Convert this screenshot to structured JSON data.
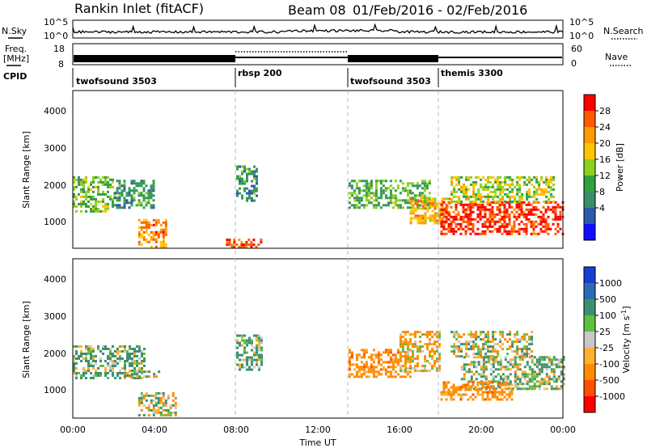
{
  "header": {
    "title": "Rankin Inlet (fitACF)",
    "beam": "Beam 08",
    "date_range": "01/Feb/2016 - 02/Feb/2016"
  },
  "noise_panel": {
    "left_label": "N.Sky",
    "right_label": "N.Search",
    "tick_top": "10^5",
    "tick_bottom": "10^0"
  },
  "freq_panel": {
    "left_label_1": "Freq.",
    "left_label_2": "[MHz]",
    "tick_top": "18",
    "tick_bottom": "8",
    "right_label": "Nave",
    "right_tick_top": "60",
    "right_tick_bottom": "0"
  },
  "cpid_panel": {
    "label": "CPID",
    "modes": [
      {
        "name": "twofsound 3503",
        "start_hr": 0.0
      },
      {
        "name": "rbsp 200",
        "start_hr": 8.0
      },
      {
        "name": "twofsound 3503",
        "start_hr": 13.5
      },
      {
        "name": "themis 3300",
        "start_hr": 18.0
      }
    ]
  },
  "axes": {
    "xlabel": "Time UT",
    "x_ticks": [
      "00:00",
      "04:00",
      "08:00",
      "12:00",
      "16:00",
      "20:00",
      "00:00"
    ],
    "ylabel": "Slant Range [km]",
    "y_ticks": [
      "1000",
      "2000",
      "3000",
      "4000"
    ]
  },
  "colorbars": {
    "power": {
      "label": "Power [dB]",
      "ticks": [
        "28",
        "24",
        "20",
        "16",
        "12",
        "8",
        "4"
      ],
      "colors": [
        "#ff0000",
        "#ff5a00",
        "#ff9a00",
        "#ffc400",
        "#8cd020",
        "#30a040",
        "#3a8e6a",
        "#2a5aa8",
        "#1010ff"
      ]
    },
    "velocity": {
      "label": "Velocity [m s^-1]",
      "ticks": [
        "1000",
        "500",
        "100",
        "25",
        "-25",
        "-100",
        "-500",
        "-1000"
      ],
      "colors": [
        "#1a3ed0",
        "#2d6bb0",
        "#3c9070",
        "#5cc040",
        "#c8c8c8",
        "#ffb030",
        "#ff8c00",
        "#ff5000",
        "#ff0000"
      ]
    }
  },
  "chart_data": [
    {
      "type": "heatmap",
      "title": "Power",
      "xlabel": "Time UT",
      "ylabel": "Slant Range [km]",
      "xlim": [
        0,
        24
      ],
      "ylim": [
        180,
        4600
      ],
      "colorbar_label": "Power [dB]",
      "clim": [
        0,
        32
      ],
      "regions": [
        {
          "x0": 0.0,
          "x1": 2.0,
          "y0": 1200,
          "y1": 2200,
          "value": 14
        },
        {
          "x0": 2.0,
          "x1": 4.0,
          "y0": 1300,
          "y1": 2100,
          "value": 10
        },
        {
          "x0": 3.2,
          "x1": 4.6,
          "y0": 250,
          "y1": 1000,
          "value": 24
        },
        {
          "x0": 7.5,
          "x1": 9.2,
          "y0": 200,
          "y1": 450,
          "value": 27
        },
        {
          "x0": 8.0,
          "x1": 9.0,
          "y0": 1500,
          "y1": 2500,
          "value": 10
        },
        {
          "x0": 13.5,
          "x1": 17.5,
          "y0": 1300,
          "y1": 2100,
          "value": 13
        },
        {
          "x0": 16.5,
          "x1": 18.5,
          "y0": 900,
          "y1": 1600,
          "value": 22
        },
        {
          "x0": 18.0,
          "x1": 24.0,
          "y0": 600,
          "y1": 1500,
          "value": 29
        },
        {
          "x0": 18.5,
          "x1": 23.5,
          "y0": 1500,
          "y1": 2200,
          "value": 17
        }
      ]
    },
    {
      "type": "heatmap",
      "title": "Velocity",
      "xlabel": "Time UT",
      "ylabel": "Slant Range [km]",
      "xlim": [
        0,
        24
      ],
      "ylim": [
        180,
        4600
      ],
      "colorbar_label": "Velocity [m s^-1]",
      "clim": [
        -1000,
        1000
      ],
      "regions": [
        {
          "x0": 0.0,
          "x1": 3.5,
          "y0": 1300,
          "y1": 2200,
          "value": 150
        },
        {
          "x0": 2.5,
          "x1": 4.2,
          "y0": 1300,
          "y1": 1500,
          "value": 0
        },
        {
          "x0": 3.2,
          "x1": 5.0,
          "y0": 250,
          "y1": 900,
          "value": 0
        },
        {
          "x0": 8.0,
          "x1": 9.2,
          "y0": 1500,
          "y1": 2500,
          "value": 150
        },
        {
          "x0": 13.5,
          "x1": 16.5,
          "y0": 1300,
          "y1": 2100,
          "value": -300
        },
        {
          "x0": 16.0,
          "x1": 18.0,
          "y0": 1500,
          "y1": 2600,
          "value": -150
        },
        {
          "x0": 18.5,
          "x1": 22.5,
          "y0": 1900,
          "y1": 2600,
          "value": 0
        },
        {
          "x0": 19.0,
          "x1": 24.0,
          "y0": 1000,
          "y1": 1900,
          "value": 100
        },
        {
          "x0": 18.0,
          "x1": 21.5,
          "y0": 700,
          "y1": 1200,
          "value": -300
        }
      ]
    }
  ]
}
